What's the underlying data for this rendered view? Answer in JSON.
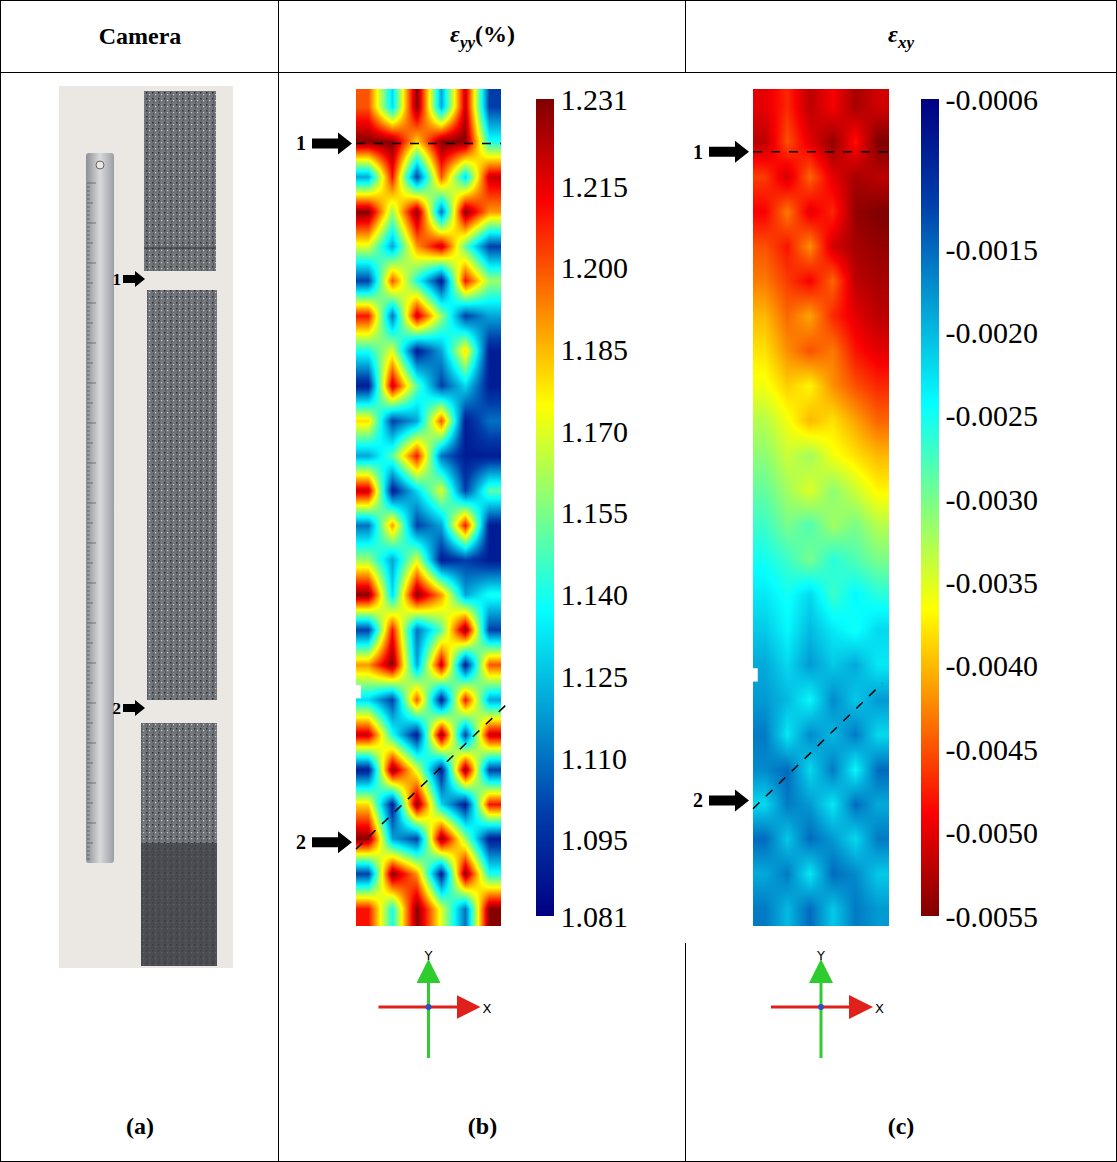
{
  "table": {
    "header": [
      {
        "text": "Camera"
      },
      {
        "symbol": "ε",
        "sub": "yy",
        "suffix": "(%)"
      },
      {
        "symbol": "ε",
        "sub": "xy"
      }
    ],
    "labels": [
      "(a)",
      "(b)",
      "(c)"
    ]
  },
  "photo": {
    "marker_labels": [
      "1",
      "2"
    ]
  },
  "chart_data": [
    {
      "type": "heatmap",
      "color": "Jet",
      "tick_labels": false,
      "marker_labels": [
        "1",
        "2"
      ],
      "axis_labels": [
        "X",
        "Y"
      ],
      "colorbar_range": [
        1.081,
        1.231
      ],
      "colorbar_ticks": [
        1.081,
        1.095,
        {
          "value": 1.11,
          "label": "1.110"
        },
        1.125,
        {
          "value": 1.14,
          "label": "1.140"
        },
        1.155,
        {
          "value": 1.17,
          "label": "1.170"
        },
        1.185,
        {
          "value": 1.2,
          "label": "1.200"
        },
        1.215,
        1.231
      ],
      "z": [
        [
          1.2,
          1.13,
          1.23,
          1.12,
          1.22,
          1.1
        ],
        [
          1.23,
          1.23,
          1.18,
          1.23,
          1.23,
          1.14
        ],
        [
          1.12,
          1.21,
          1.1,
          1.2,
          1.13,
          1.22
        ],
        [
          1.23,
          1.16,
          1.23,
          1.11,
          1.23,
          1.19
        ],
        [
          1.17,
          1.12,
          1.19,
          1.22,
          1.15,
          1.1
        ],
        [
          1.1,
          1.2,
          1.14,
          1.09,
          1.21,
          1.16
        ],
        [
          1.21,
          1.11,
          1.22,
          1.16,
          1.1,
          1.12
        ],
        [
          1.14,
          1.17,
          1.09,
          1.12,
          1.18,
          1.09
        ],
        [
          1.09,
          1.22,
          1.15,
          1.1,
          1.13,
          1.09
        ],
        [
          1.18,
          1.1,
          1.12,
          1.2,
          1.09,
          1.11
        ],
        [
          1.12,
          1.15,
          1.21,
          1.11,
          1.09,
          1.09
        ],
        [
          1.22,
          1.09,
          1.13,
          1.17,
          1.1,
          1.15
        ],
        [
          1.11,
          1.19,
          1.1,
          1.12,
          1.21,
          1.09
        ],
        [
          1.16,
          1.12,
          1.17,
          1.09,
          1.1,
          1.09
        ],
        [
          1.23,
          1.13,
          1.23,
          1.19,
          1.12,
          1.14
        ],
        [
          1.1,
          1.21,
          1.11,
          1.15,
          1.23,
          1.1
        ],
        [
          1.19,
          1.23,
          1.12,
          1.22,
          1.09,
          1.2
        ],
        [
          1.13,
          1.1,
          1.2,
          1.09,
          1.21,
          1.12
        ],
        [
          1.22,
          1.14,
          1.09,
          1.23,
          1.1,
          1.22
        ],
        [
          1.09,
          1.23,
          1.17,
          1.09,
          1.23,
          1.1
        ],
        [
          1.18,
          1.09,
          1.23,
          1.13,
          1.09,
          1.21
        ],
        [
          1.23,
          1.12,
          1.1,
          1.23,
          1.16,
          1.09
        ],
        [
          1.1,
          1.23,
          1.19,
          1.09,
          1.23,
          1.14
        ],
        [
          1.21,
          1.14,
          1.23,
          1.17,
          1.11,
          1.23
        ]
      ]
    },
    {
      "type": "heatmap",
      "color": "Jet_r",
      "tick_labels": false,
      "marker_labels": [
        "1",
        "2"
      ],
      "axis_labels": [
        "X",
        "Y"
      ],
      "colorbar_range": [
        -0.0055,
        -0.0006
      ],
      "colorbar_ticks": [
        -0.0006,
        -0.0015,
        {
          "value": -0.002,
          "label": "-0.0020"
        },
        -0.0025,
        {
          "value": -0.003,
          "label": "-0.0030"
        },
        -0.0035,
        {
          "value": -0.004,
          "label": "-0.0040"
        },
        -0.0045,
        {
          "value": -0.005,
          "label": "-0.0050"
        },
        -0.0055
      ],
      "z": [
        [
          -0.005,
          -0.0047,
          -0.0052,
          -0.0049,
          -0.0053,
          -0.0051
        ],
        [
          -0.0052,
          -0.0045,
          -0.005,
          -0.0054,
          -0.0048,
          -0.0055
        ],
        [
          -0.0046,
          -0.0051,
          -0.0044,
          -0.005,
          -0.0053,
          -0.0052
        ],
        [
          -0.0049,
          -0.0043,
          -0.005,
          -0.0047,
          -0.0054,
          -0.0055
        ],
        [
          -0.0045,
          -0.0048,
          -0.0042,
          -0.0051,
          -0.0053,
          -0.0054
        ],
        [
          -0.0043,
          -0.0046,
          -0.0049,
          -0.0044,
          -0.0052,
          -0.0053
        ],
        [
          -0.004,
          -0.0044,
          -0.0041,
          -0.0047,
          -0.005,
          -0.0052
        ],
        [
          -0.0038,
          -0.0042,
          -0.0045,
          -0.0043,
          -0.0048,
          -0.005
        ],
        [
          -0.0036,
          -0.0039,
          -0.0037,
          -0.0042,
          -0.0045,
          -0.0047
        ],
        [
          -0.0033,
          -0.0036,
          -0.004,
          -0.0038,
          -0.0041,
          -0.0044
        ],
        [
          -0.0031,
          -0.0034,
          -0.0032,
          -0.0036,
          -0.0038,
          -0.004
        ],
        [
          -0.0029,
          -0.0032,
          -0.0035,
          -0.0031,
          -0.0034,
          -0.0037
        ],
        [
          -0.0027,
          -0.003,
          -0.0028,
          -0.0032,
          -0.003,
          -0.0033
        ],
        [
          -0.0025,
          -0.0027,
          -0.003,
          -0.0026,
          -0.0028,
          -0.003
        ],
        [
          -0.0023,
          -0.0025,
          -0.0022,
          -0.0027,
          -0.0024,
          -0.0026
        ],
        [
          -0.0021,
          -0.0024,
          -0.002,
          -0.0023,
          -0.0025,
          -0.0022
        ],
        [
          -0.0019,
          -0.0022,
          -0.0018,
          -0.0021,
          -0.0019,
          -0.0023
        ],
        [
          -0.0018,
          -0.002,
          -0.0024,
          -0.0017,
          -0.0021,
          -0.0018
        ],
        [
          -0.0016,
          -0.0023,
          -0.0017,
          -0.002,
          -0.0016,
          -0.0022
        ],
        [
          -0.0017,
          -0.0015,
          -0.0022,
          -0.0016,
          -0.0024,
          -0.0015
        ],
        [
          -0.0022,
          -0.0016,
          -0.0018,
          -0.0023,
          -0.0015,
          -0.0019
        ],
        [
          -0.0015,
          -0.0021,
          -0.0015,
          -0.0018,
          -0.0022,
          -0.0016
        ],
        [
          -0.0019,
          -0.0016,
          -0.0023,
          -0.0015,
          -0.0017,
          -0.0021
        ],
        [
          -0.0016,
          -0.002,
          -0.0015,
          -0.0021,
          -0.0016,
          -0.0018
        ]
      ]
    }
  ]
}
